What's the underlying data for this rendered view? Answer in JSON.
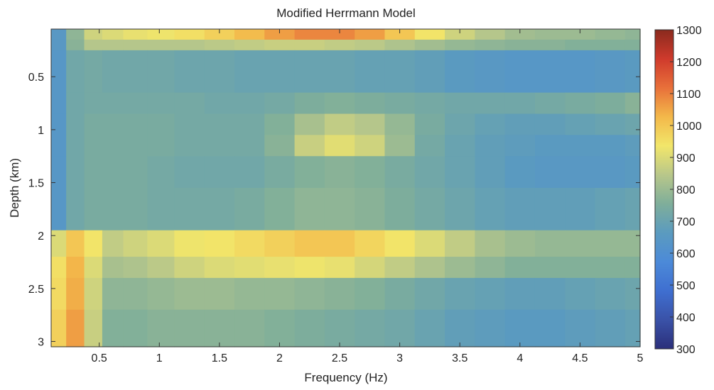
{
  "chart_data": {
    "type": "heatmap",
    "title": "Modified Herrmann Model",
    "xlabel": "Frequency (Hz)",
    "ylabel": "Depth (km)",
    "xlim": [
      0.1,
      5
    ],
    "ylim": [
      0.05,
      3.05
    ],
    "y_reversed": true,
    "x_ticks": [
      "0.5",
      "1",
      "1.5",
      "2",
      "2.5",
      "3",
      "3.5",
      "4",
      "4.5",
      "5"
    ],
    "y_ticks": [
      "0.5",
      "1",
      "1.5",
      "2",
      "2.5",
      "3"
    ],
    "colorbar": {
      "range": [
        300,
        1300
      ],
      "ticks": [
        "300",
        "400",
        "500",
        "600",
        "700",
        "800",
        "900",
        "1000",
        "1100",
        "1200",
        "1300"
      ],
      "colormap": "jet-muted",
      "colors": [
        "#2b2f7a",
        "#3a52a8",
        "#3f6fd0",
        "#4c8ad8",
        "#5b9bbf",
        "#7fae9a",
        "#b8c78a",
        "#f2e66a",
        "#f3b84a",
        "#e8703a",
        "#cf3a2c",
        "#8a2a1e"
      ]
    },
    "x_samples": [
      0.15,
      0.3,
      0.45,
      0.6,
      0.8,
      1.0,
      1.25,
      1.5,
      1.75,
      2.0,
      2.25,
      2.5,
      2.75,
      3.0,
      3.25,
      3.5,
      3.75,
      4.0,
      4.25,
      4.5,
      4.75,
      5.0
    ],
    "layers": [
      {
        "depth": [
          0.05,
          0.15
        ],
        "values": [
          650,
          780,
          880,
          900,
          920,
          930,
          950,
          980,
          1020,
          1060,
          1090,
          1090,
          1060,
          1000,
          940,
          880,
          840,
          810,
          800,
          800,
          790,
          780
        ]
      },
      {
        "depth": [
          0.15,
          0.25
        ],
        "values": [
          650,
          770,
          840,
          840,
          840,
          840,
          840,
          850,
          860,
          870,
          870,
          860,
          850,
          830,
          810,
          790,
          780,
          770,
          770,
          760,
          760,
          760
        ]
      },
      {
        "depth": [
          0.25,
          0.65
        ],
        "values": [
          640,
          720,
          730,
          720,
          720,
          720,
          710,
          710,
          700,
          700,
          700,
          700,
          690,
          690,
          680,
          660,
          650,
          640,
          640,
          640,
          650,
          660
        ]
      },
      {
        "depth": [
          0.65,
          0.85
        ],
        "values": [
          640,
          720,
          730,
          730,
          730,
          730,
          730,
          720,
          720,
          730,
          750,
          760,
          750,
          740,
          730,
          720,
          720,
          720,
          730,
          740,
          750,
          770
        ]
      },
      {
        "depth": [
          0.85,
          1.05
        ],
        "values": [
          640,
          720,
          740,
          740,
          740,
          740,
          730,
          730,
          730,
          760,
          820,
          860,
          840,
          790,
          740,
          710,
          690,
          680,
          680,
          690,
          700,
          710
        ]
      },
      {
        "depth": [
          1.05,
          1.25
        ],
        "values": [
          640,
          720,
          740,
          740,
          740,
          740,
          730,
          730,
          730,
          770,
          870,
          910,
          880,
          800,
          730,
          700,
          680,
          670,
          660,
          660,
          660,
          670
        ]
      },
      {
        "depth": [
          1.25,
          1.55
        ],
        "values": [
          640,
          720,
          740,
          740,
          740,
          730,
          720,
          720,
          720,
          740,
          760,
          770,
          760,
          740,
          720,
          700,
          680,
          660,
          650,
          650,
          650,
          660
        ]
      },
      {
        "depth": [
          1.55,
          1.95
        ],
        "values": [
          640,
          720,
          740,
          740,
          740,
          730,
          730,
          730,
          740,
          760,
          780,
          780,
          770,
          750,
          730,
          710,
          690,
          680,
          680,
          680,
          690,
          700
        ]
      },
      {
        "depth": [
          1.95,
          2.2
        ],
        "values": [
          900,
          1000,
          940,
          860,
          880,
          900,
          930,
          940,
          960,
          980,
          1000,
          1000,
          970,
          940,
          900,
          860,
          820,
          800,
          790,
          790,
          790,
          790
        ]
      },
      {
        "depth": [
          2.2,
          2.4
        ],
        "values": [
          950,
          1030,
          900,
          820,
          830,
          850,
          880,
          900,
          910,
          920,
          930,
          920,
          890,
          860,
          830,
          800,
          780,
          760,
          760,
          760,
          760,
          760
        ]
      },
      {
        "depth": [
          2.4,
          2.7
        ],
        "values": [
          960,
          1040,
          880,
          780,
          780,
          790,
          800,
          800,
          790,
          790,
          780,
          770,
          760,
          740,
          720,
          700,
          690,
          680,
          680,
          690,
          700,
          710
        ]
      },
      {
        "depth": [
          2.7,
          3.05
        ],
        "values": [
          980,
          1060,
          870,
          760,
          760,
          770,
          770,
          770,
          770,
          760,
          750,
          740,
          730,
          720,
          700,
          680,
          670,
          660,
          660,
          670,
          680,
          690
        ]
      }
    ]
  }
}
